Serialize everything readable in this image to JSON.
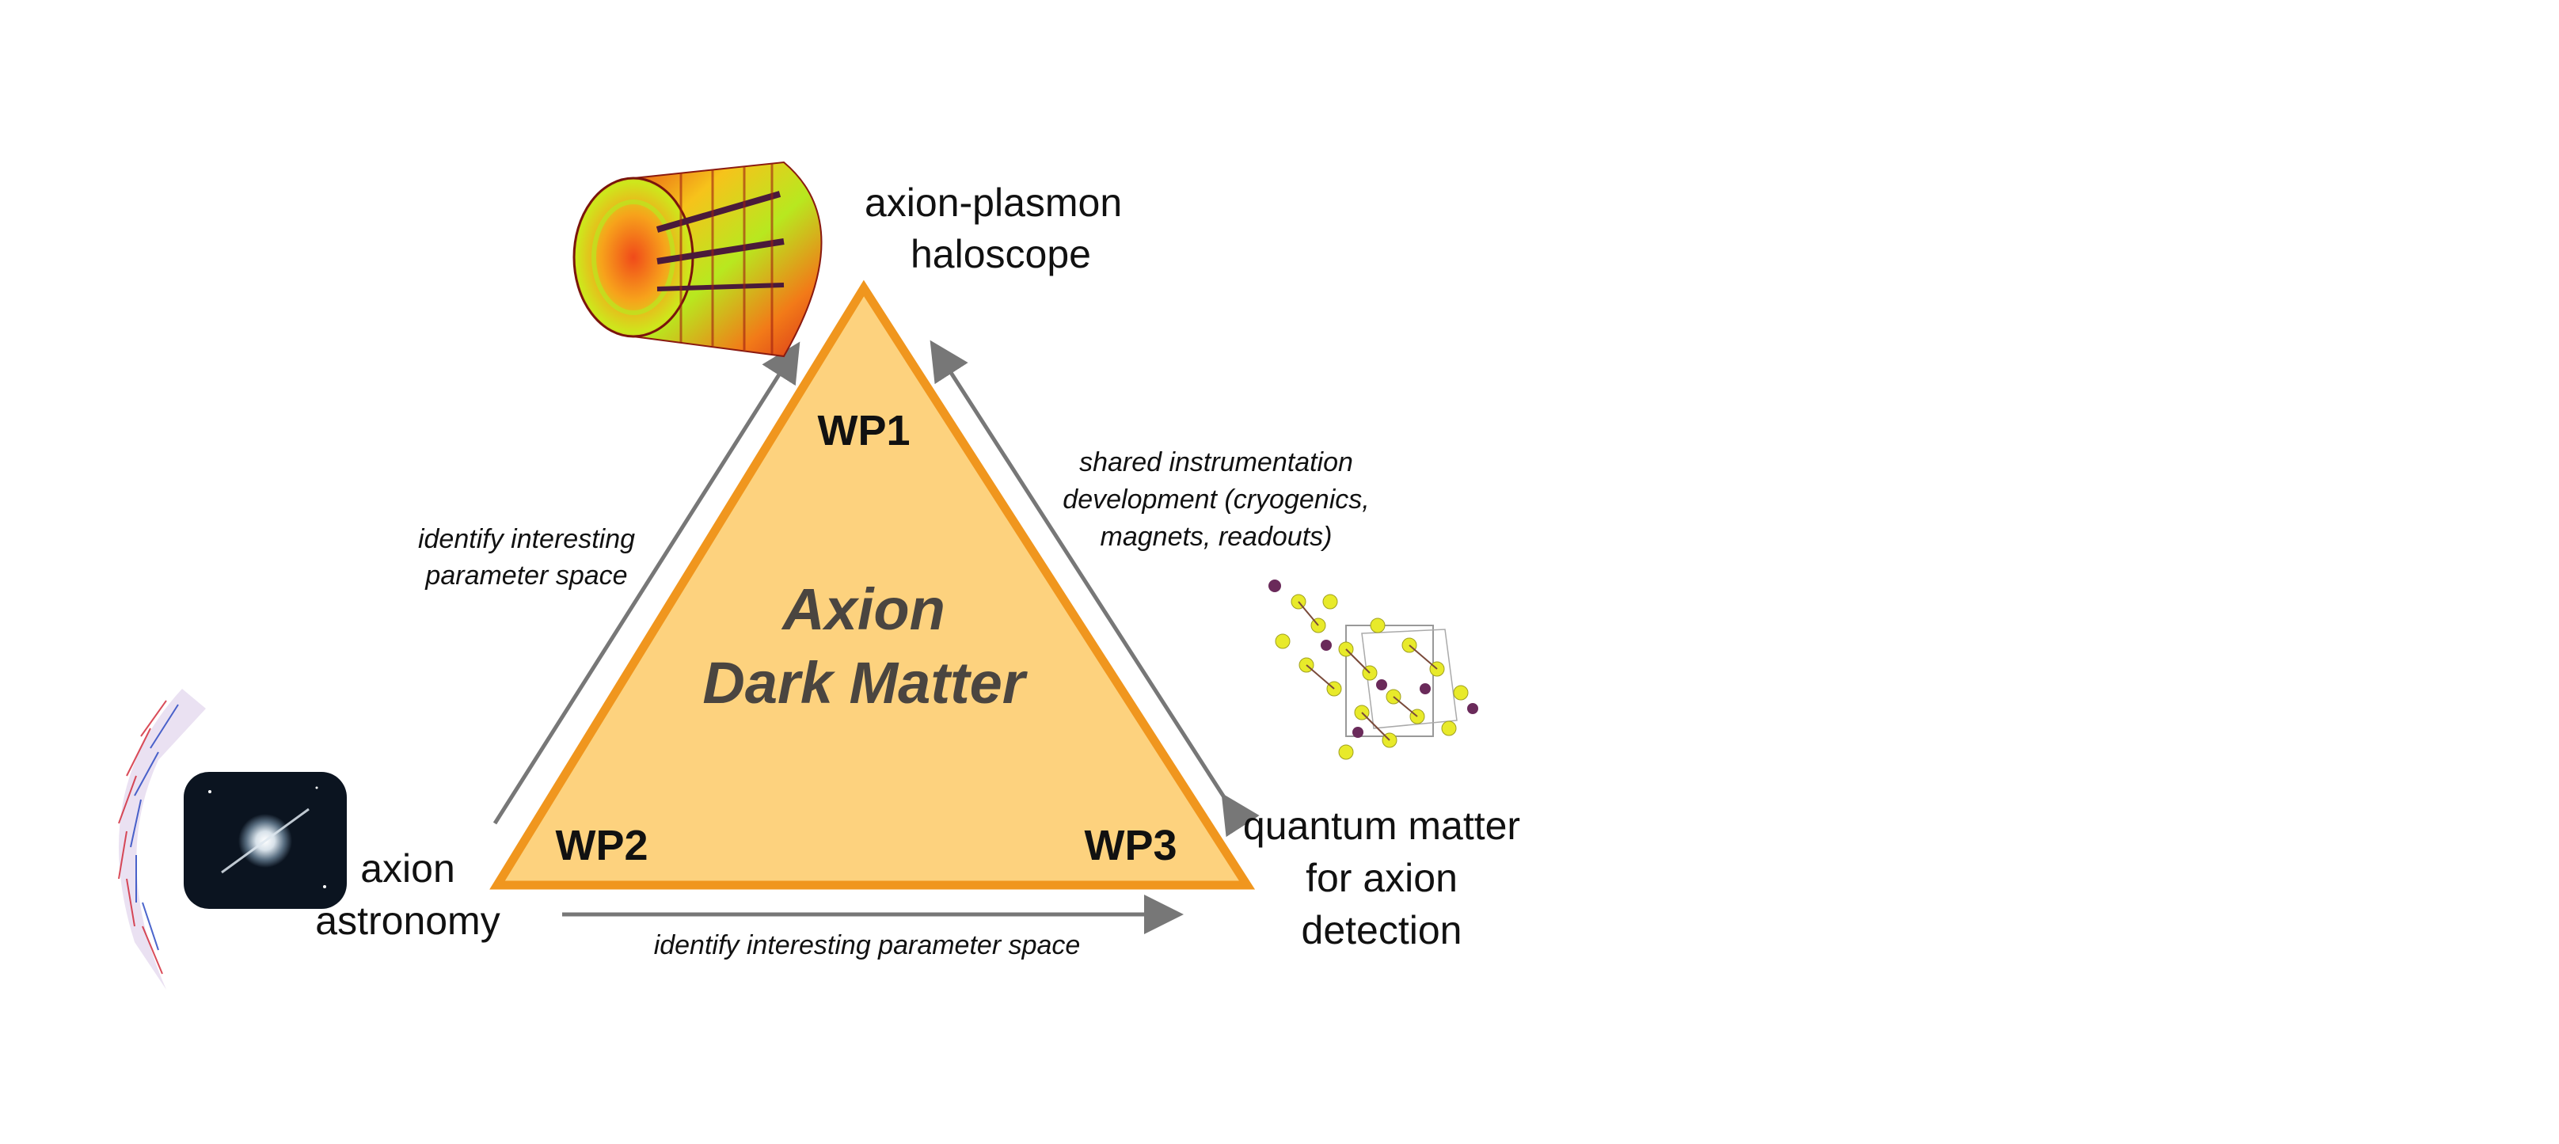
{
  "center_title": [
    "Axion",
    "Dark Matter"
  ],
  "nodes": {
    "wp1": {
      "tag": "WP1",
      "label": [
        "axion-plasmon",
        "haloscope"
      ]
    },
    "wp2": {
      "tag": "WP2",
      "label": [
        "axion",
        "astronomy"
      ]
    },
    "wp3": {
      "tag": "WP3",
      "label": [
        "quantum matter",
        "for axion",
        "detection"
      ]
    }
  },
  "edges": {
    "wp2_to_wp1": [
      "identify interesting",
      "parameter space"
    ],
    "wp1_wp3": [
      "shared instrumentation",
      "development (cryogenics,",
      "magnets, readouts)"
    ],
    "wp2_to_wp3": [
      "identify interesting parameter space"
    ]
  },
  "colors": {
    "triangle_fill": "#fdd27e",
    "triangle_stroke": "#f0961e",
    "arrow": "#777777",
    "center_text": "#4a4540"
  }
}
